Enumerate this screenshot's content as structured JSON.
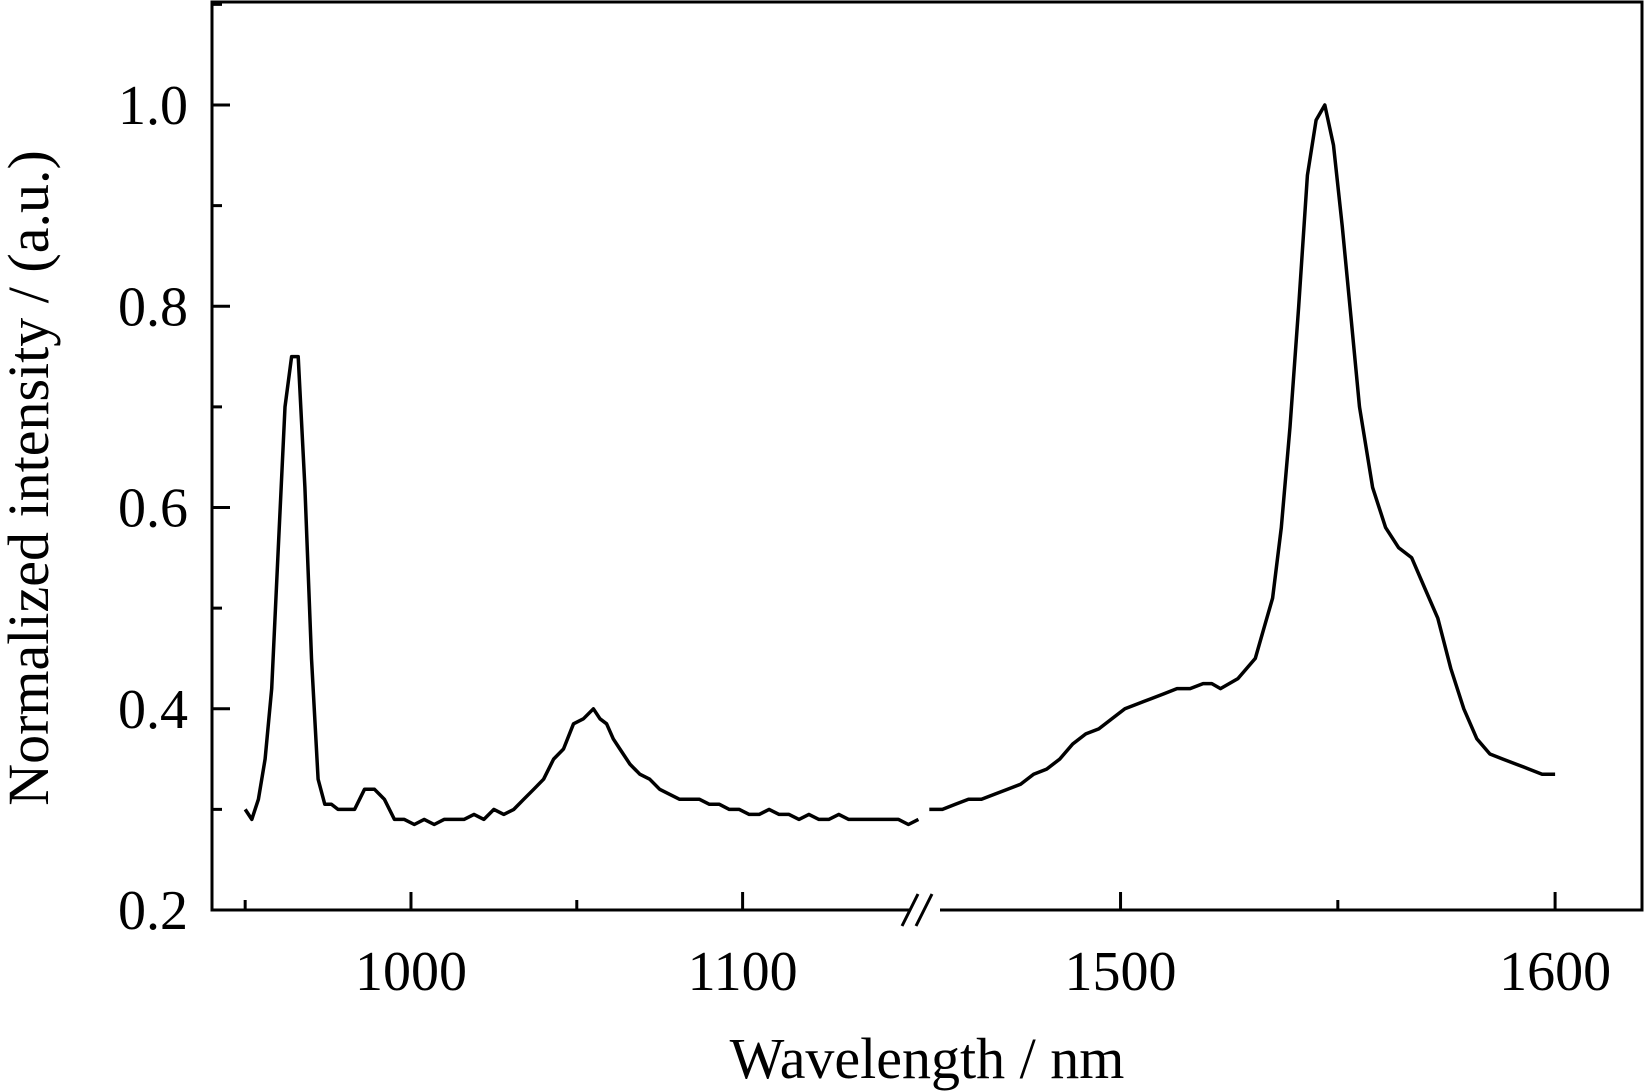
{
  "chart_data": {
    "type": "line",
    "title": "",
    "xlabel": "Wavelength / nm",
    "ylabel": "Normalized intensity / (a.u.)",
    "ylim": [
      0.2,
      1.1
    ],
    "y_ticks": [
      0.2,
      0.4,
      0.6,
      0.8,
      1.0
    ],
    "y_tick_labels": [
      "0.2",
      "0.4",
      "0.6",
      "0.8",
      "1.0"
    ],
    "x_axis_break": true,
    "x_segments": [
      {
        "range": [
          940,
          1155
        ],
        "major_ticks": [
          1000,
          1100
        ],
        "minor_ticks": [
          950,
          1050
        ],
        "tick_labels": [
          "1000",
          "1100"
        ]
      },
      {
        "range": [
          1455,
          1620
        ],
        "major_ticks": [
          1500,
          1600
        ],
        "minor_ticks": [
          1550
        ],
        "tick_labels": [
          "1500",
          "1600"
        ]
      }
    ],
    "line_color": "#000000",
    "grid": false,
    "legend": false,
    "series": [
      {
        "segment": 0,
        "x": [
          950,
          952,
          954,
          956,
          958,
          960,
          962,
          964,
          966,
          968,
          970,
          972,
          974,
          976,
          978,
          980,
          983,
          986,
          989,
          992,
          995,
          998,
          1001,
          1004,
          1007,
          1010,
          1013,
          1016,
          1019,
          1022,
          1025,
          1028,
          1031,
          1034,
          1037,
          1040,
          1043,
          1046,
          1049,
          1052,
          1055,
          1057,
          1059,
          1061,
          1063,
          1066,
          1069,
          1072,
          1075,
          1078,
          1081,
          1084,
          1087,
          1090,
          1093,
          1096,
          1099,
          1102,
          1105,
          1108,
          1111,
          1114,
          1117,
          1120,
          1123,
          1126,
          1129,
          1132,
          1135,
          1138,
          1141,
          1144,
          1147,
          1150,
          1153
        ],
        "y": [
          0.3,
          0.29,
          0.31,
          0.35,
          0.42,
          0.56,
          0.7,
          0.75,
          0.75,
          0.62,
          0.45,
          0.33,
          0.305,
          0.305,
          0.3,
          0.3,
          0.3,
          0.32,
          0.32,
          0.31,
          0.29,
          0.29,
          0.285,
          0.29,
          0.285,
          0.29,
          0.29,
          0.29,
          0.295,
          0.29,
          0.3,
          0.295,
          0.3,
          0.31,
          0.32,
          0.33,
          0.35,
          0.36,
          0.385,
          0.39,
          0.4,
          0.39,
          0.385,
          0.37,
          0.36,
          0.345,
          0.335,
          0.33,
          0.32,
          0.315,
          0.31,
          0.31,
          0.31,
          0.305,
          0.305,
          0.3,
          0.3,
          0.295,
          0.295,
          0.3,
          0.295,
          0.295,
          0.29,
          0.295,
          0.29,
          0.29,
          0.295,
          0.29,
          0.29,
          0.29,
          0.29,
          0.29,
          0.29,
          0.285,
          0.29
        ]
      },
      {
        "segment": 1,
        "x": [
          1456,
          1459,
          1462,
          1465,
          1468,
          1471,
          1474,
          1477,
          1480,
          1483,
          1486,
          1489,
          1492,
          1495,
          1498,
          1501,
          1504,
          1507,
          1510,
          1513,
          1516,
          1519,
          1521,
          1523,
          1525,
          1527,
          1529,
          1531,
          1533,
          1535,
          1537,
          1539,
          1541,
          1543,
          1545,
          1547,
          1549,
          1551,
          1553,
          1555,
          1558,
          1561,
          1564,
          1567,
          1570,
          1573,
          1576,
          1579,
          1582,
          1585,
          1588,
          1591,
          1594,
          1597,
          1600
        ],
        "y": [
          0.3,
          0.3,
          0.305,
          0.31,
          0.31,
          0.315,
          0.32,
          0.325,
          0.335,
          0.34,
          0.35,
          0.365,
          0.375,
          0.38,
          0.39,
          0.4,
          0.405,
          0.41,
          0.415,
          0.42,
          0.42,
          0.425,
          0.425,
          0.42,
          0.425,
          0.43,
          0.44,
          0.45,
          0.48,
          0.51,
          0.58,
          0.68,
          0.8,
          0.93,
          0.985,
          1.0,
          0.96,
          0.88,
          0.79,
          0.7,
          0.62,
          0.58,
          0.56,
          0.55,
          0.52,
          0.49,
          0.44,
          0.4,
          0.37,
          0.355,
          0.35,
          0.345,
          0.34,
          0.335,
          0.335
        ]
      }
    ]
  }
}
